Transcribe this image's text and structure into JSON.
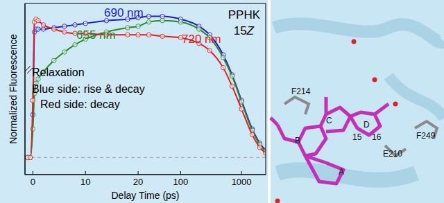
{
  "chart_data": {
    "type": "line",
    "title": "PPHK",
    "subtitle": "15Z",
    "annotations": [
      "Relaxation",
      "Blue side: rise & decay",
      "Red side: decay"
    ],
    "x_label": "Delay Time (ps)",
    "y_label": "Normalized Fluorescence",
    "x": [
      -1,
      -0.5,
      0,
      0.3,
      0.6,
      1,
      2,
      4,
      6,
      8,
      10,
      14,
      18,
      20,
      30,
      50,
      100,
      200,
      300,
      500,
      700,
      1000,
      1500,
      2000,
      2500
    ],
    "series": [
      {
        "name": "690 nm",
        "color": "#1a1ad8",
        "marker": "circle",
        "values": [
          0,
          0,
          0.3,
          0.88,
          0.9,
          0.9,
          0.9,
          0.91,
          0.92,
          0.93,
          0.94,
          0.96,
          0.97,
          0.98,
          0.99,
          0.99,
          0.97,
          0.92,
          0.86,
          0.72,
          0.58,
          0.4,
          0.2,
          0.1,
          0.05
        ]
      },
      {
        "name": "655 nm",
        "color": "#2a8a2a",
        "marker": "circle",
        "values": [
          0,
          0,
          0.2,
          0.45,
          0.52,
          0.55,
          0.6,
          0.68,
          0.74,
          0.79,
          0.83,
          0.88,
          0.91,
          0.92,
          0.95,
          0.96,
          0.95,
          0.9,
          0.84,
          0.7,
          0.57,
          0.39,
          0.19,
          0.09,
          0.04
        ]
      },
      {
        "name": "720 nm",
        "color": "#e02020",
        "marker": "circle",
        "values": [
          0,
          0,
          0.4,
          0.95,
          0.97,
          0.96,
          0.93,
          0.9,
          0.88,
          0.87,
          0.87,
          0.86,
          0.86,
          0.86,
          0.86,
          0.85,
          0.84,
          0.8,
          0.75,
          0.63,
          0.5,
          0.34,
          0.16,
          0.07,
          0.03
        ]
      }
    ],
    "xlim": [
      -1.5,
      2500
    ],
    "xticks": [
      0,
      10,
      20,
      100,
      1000
    ],
    "log": "x",
    "ylim": [
      -0.12,
      1.08
    ],
    "yticks": [
      0
    ],
    "grid": true,
    "tick_labels": "x"
  },
  "structure": {
    "labels": [
      "F214",
      "A",
      "B",
      "C",
      "D",
      "15",
      "16",
      "E210",
      "F249"
    ]
  }
}
